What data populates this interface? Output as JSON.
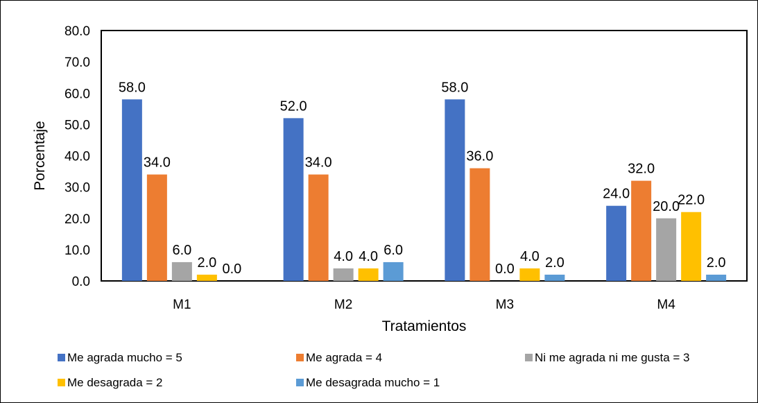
{
  "chart_data": {
    "type": "bar",
    "title": "",
    "xlabel": "Tratamientos",
    "ylabel": "Porcentaje",
    "ylim": [
      0,
      80
    ],
    "yticks": [
      "0.0",
      "10.0",
      "20.0",
      "30.0",
      "40.0",
      "50.0",
      "60.0",
      "70.0",
      "80.0"
    ],
    "grid": false,
    "legend_position": "bottom",
    "categories": [
      "M1",
      "M2",
      "M3",
      "M4"
    ],
    "series": [
      {
        "name": "Me agrada mucho = 5",
        "color": "#4472C4",
        "values": [
          58.0,
          52.0,
          58.0,
          24.0
        ],
        "labels": [
          "58.0",
          "52.0",
          "58.0",
          "24.0"
        ]
      },
      {
        "name": "Me agrada = 4",
        "color": "#ED7D31",
        "values": [
          34.0,
          34.0,
          36.0,
          32.0
        ],
        "labels": [
          "34.0",
          "34.0",
          "36.0",
          "32.0"
        ]
      },
      {
        "name": "Ni me agrada ni me gusta = 3",
        "color": "#A5A5A5",
        "values": [
          6.0,
          4.0,
          0.0,
          20.0
        ],
        "labels": [
          "6.0",
          "4.0",
          "0.0",
          "20.0"
        ]
      },
      {
        "name": "Me desagrada = 2",
        "color": "#FFC000",
        "values": [
          2.0,
          4.0,
          4.0,
          22.0
        ],
        "labels": [
          "2.0",
          "4.0",
          "4.0",
          "22.0"
        ]
      },
      {
        "name": "Me desagrada mucho = 1",
        "color": "#5B9BD5",
        "values": [
          0.0,
          6.0,
          2.0,
          2.0
        ],
        "labels": [
          "0.0",
          "6.0",
          "2.0",
          "2.0"
        ]
      }
    ]
  }
}
